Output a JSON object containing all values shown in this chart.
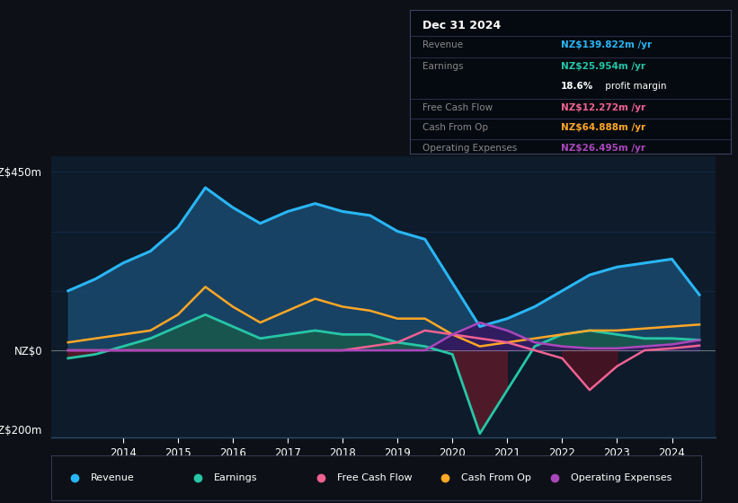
{
  "bg_color": "#0d1117",
  "plot_bg_color": "#0d1b2a",
  "grid_color": "#1e3a5f",
  "zero_line_color": "#aaaaaa",
  "ylim": [
    -220,
    490
  ],
  "years": [
    2013.5,
    2014,
    2014.5,
    2015,
    2015.5,
    2016,
    2016.5,
    2017,
    2017.5,
    2018,
    2018.5,
    2019,
    2019.5,
    2020,
    2020.5,
    2021,
    2021.5,
    2022,
    2022.5,
    2023,
    2023.5,
    2024,
    2024.5,
    2025.0
  ],
  "revenue": [
    150,
    180,
    220,
    250,
    310,
    410,
    360,
    320,
    350,
    370,
    350,
    340,
    300,
    280,
    170,
    60,
    80,
    110,
    150,
    190,
    210,
    220,
    230,
    140
  ],
  "earnings": [
    -20,
    -10,
    10,
    30,
    60,
    90,
    60,
    30,
    40,
    50,
    40,
    40,
    20,
    10,
    -10,
    -210,
    -100,
    10,
    40,
    50,
    40,
    30,
    30,
    26
  ],
  "free_cash_flow": [
    0,
    0,
    0,
    0,
    0,
    0,
    0,
    0,
    0,
    0,
    0,
    10,
    20,
    50,
    40,
    30,
    20,
    0,
    -20,
    -100,
    -40,
    0,
    5,
    12
  ],
  "cash_from_op": [
    20,
    30,
    40,
    50,
    90,
    160,
    110,
    70,
    100,
    130,
    110,
    100,
    80,
    80,
    40,
    10,
    20,
    30,
    40,
    50,
    50,
    55,
    60,
    65
  ],
  "operating_expenses": [
    0,
    0,
    0,
    0,
    0,
    0,
    0,
    0,
    0,
    0,
    0,
    0,
    0,
    0,
    40,
    70,
    50,
    20,
    10,
    5,
    5,
    10,
    15,
    26
  ],
  "revenue_color": "#29b6f6",
  "earnings_color": "#26c6a6",
  "free_cash_flow_color": "#f06292",
  "cash_from_op_color": "#ffa726",
  "operating_expenses_color": "#ab47bc",
  "revenue_fill": "#1a4a6e",
  "earnings_fill_pos": "#1a5a4a",
  "earnings_fill_neg": "#5a1a2a",
  "op_exp_fill": "#3a1060",
  "fcf_fill_neg": "#5a1020",
  "info_box": {
    "title": "Dec 31 2024",
    "revenue_label": "Revenue",
    "revenue_value": "NZ$139.822m /yr",
    "revenue_color": "#29b6f6",
    "earnings_label": "Earnings",
    "earnings_value": "NZ$25.954m /yr",
    "earnings_color": "#26c6a6",
    "margin_bold": "18.6%",
    "margin_rest": " profit margin",
    "fcf_label": "Free Cash Flow",
    "fcf_value": "NZ$12.272m /yr",
    "fcf_color": "#f06292",
    "cashop_label": "Cash From Op",
    "cashop_value": "NZ$64.888m /yr",
    "cashop_color": "#ffa726",
    "opex_label": "Operating Expenses",
    "opex_value": "NZ$26.495m /yr",
    "opex_color": "#ab47bc"
  },
  "legend_items": [
    {
      "label": "Revenue",
      "color": "#29b6f6"
    },
    {
      "label": "Earnings",
      "color": "#26c6a6"
    },
    {
      "label": "Free Cash Flow",
      "color": "#f06292"
    },
    {
      "label": "Cash From Op",
      "color": "#ffa726"
    },
    {
      "label": "Operating Expenses",
      "color": "#ab47bc"
    }
  ]
}
